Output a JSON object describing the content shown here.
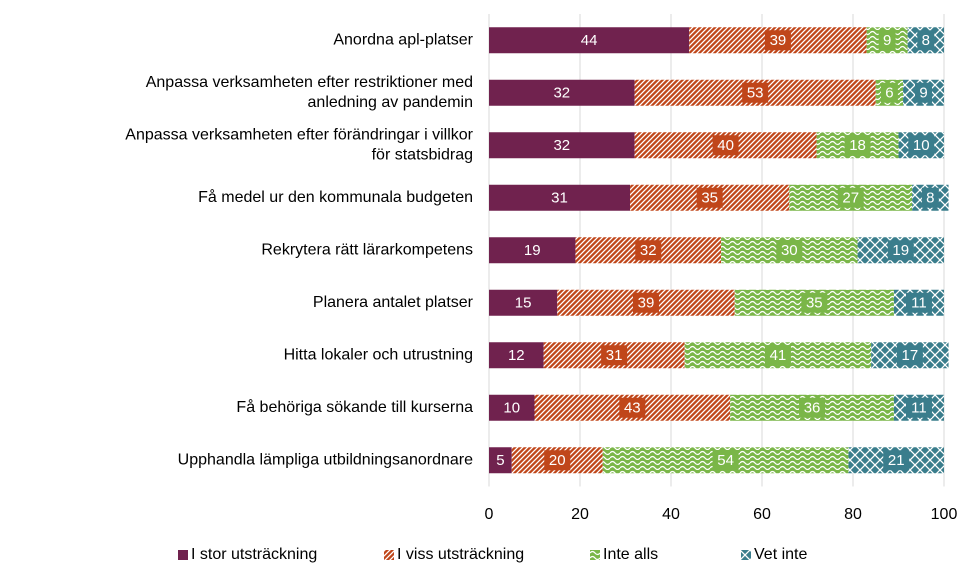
{
  "chart_data": {
    "type": "stacked-bar-horizontal",
    "categories": [
      "Anordna apl-platser",
      "Anpassa verksamheten efter restriktioner med\nanledning av pandemin",
      "Anpassa verksamheten efter förändringar i villkor\nför statsbidrag",
      "Få medel ur den kommunala budgeten",
      "Rekrytera rätt lärarkompetens",
      "Planera antalet platser",
      "Hitta lokaler och utrustning",
      "Få behöriga sökande till kurserna",
      "Upphandla lämpliga utbildningsanordnare"
    ],
    "series": [
      {
        "name": "I stor utsträckning",
        "color": "#70224e",
        "values": [
          44,
          32,
          32,
          31,
          19,
          15,
          12,
          10,
          5
        ]
      },
      {
        "name": "I viss utsträckning",
        "color": "#c0461a",
        "values": [
          39,
          53,
          40,
          35,
          32,
          39,
          31,
          43,
          20
        ]
      },
      {
        "name": "Inte alls",
        "color": "#7ab648",
        "values": [
          9,
          6,
          18,
          27,
          30,
          35,
          41,
          36,
          54
        ]
      },
      {
        "name": "Vet inte",
        "color": "#3a7d8c",
        "values": [
          8,
          9,
          10,
          8,
          19,
          11,
          17,
          11,
          21
        ]
      }
    ],
    "xlim": [
      0,
      100
    ],
    "xticks": [
      0,
      20,
      40,
      60,
      80,
      100
    ],
    "grid": true,
    "legend": "bottom"
  }
}
